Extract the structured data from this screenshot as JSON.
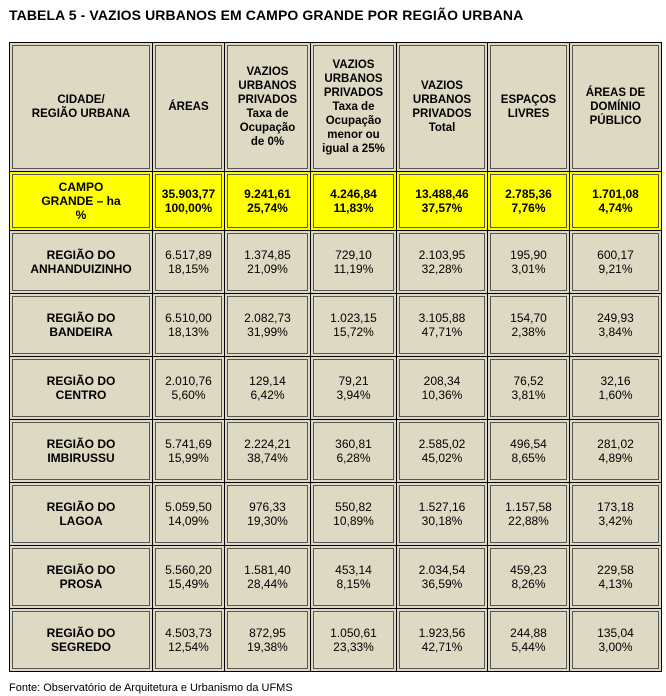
{
  "title": "TABELA 5 - VAZIOS URBANOS EM CAMPO GRANDE POR REGIÃO URBANA",
  "headers": [
    [
      "CIDADE/",
      "REGIÃO URBANA"
    ],
    [
      "ÁREAS"
    ],
    [
      "VAZIOS",
      "URBANOS",
      "PRIVADOS",
      "Taxa de",
      "Ocupação",
      "de 0%"
    ],
    [
      "VAZIOS",
      "URBANOS",
      "PRIVADOS",
      "Taxa de",
      "Ocupação",
      "menor ou",
      "igual a 25%"
    ],
    [
      "VAZIOS",
      "URBANOS",
      "PRIVADOS",
      "Total"
    ],
    [
      "ESPAÇOS",
      "LIVRES"
    ],
    [
      "ÁREAS DE",
      "DOMÍNIO",
      "PÚBLICO"
    ]
  ],
  "total_row": {
    "name": [
      "CAMPO",
      "GRANDE – ha",
      "%"
    ],
    "cells": [
      [
        "35.903,77",
        "100,00%"
      ],
      [
        "9.241,61",
        "25,74%"
      ],
      [
        "4.246,84",
        "11,83%"
      ],
      [
        "13.488,46",
        "37,57%"
      ],
      [
        "2.785,36",
        "7,76%"
      ],
      [
        "1.701,08",
        "4,74%"
      ]
    ]
  },
  "regions": [
    {
      "name": [
        "REGIÃO DO",
        "ANHANDUIZINHO"
      ],
      "cells": [
        [
          "6.517,89",
          "18,15%"
        ],
        [
          "1.374,85",
          "21,09%"
        ],
        [
          "729,10",
          "11,19%"
        ],
        [
          "2.103,95",
          "32,28%"
        ],
        [
          "195,90",
          "3,01%"
        ],
        [
          "600,17",
          "9,21%"
        ]
      ]
    },
    {
      "name": [
        "REGIÃO DO",
        "BANDEIRA"
      ],
      "cells": [
        [
          "6.510,00",
          "18,13%"
        ],
        [
          "2.082,73",
          "31,99%"
        ],
        [
          "1.023,15",
          "15,72%"
        ],
        [
          "3.105,88",
          "47,71%"
        ],
        [
          "154,70",
          "2,38%"
        ],
        [
          "249,93",
          "3,84%"
        ]
      ]
    },
    {
      "name": [
        "REGIÃO DO",
        "CENTRO"
      ],
      "cells": [
        [
          "2.010,76",
          "5,60%"
        ],
        [
          "129,14",
          "6,42%"
        ],
        [
          "79,21",
          "3,94%"
        ],
        [
          "208,34",
          "10,36%"
        ],
        [
          "76,52",
          "3,81%"
        ],
        [
          "32,16",
          "1,60%"
        ]
      ]
    },
    {
      "name": [
        "REGIÃO DO",
        "IMBIRUSSU"
      ],
      "cells": [
        [
          "5.741,69",
          "15,99%"
        ],
        [
          "2.224,21",
          "38,74%"
        ],
        [
          "360,81",
          "6,28%"
        ],
        [
          "2.585,02",
          "45,02%"
        ],
        [
          "496,54",
          "8,65%"
        ],
        [
          "281,02",
          "4,89%"
        ]
      ]
    },
    {
      "name": [
        "REGIÃO DO",
        "LAGOA"
      ],
      "cells": [
        [
          "5.059,50",
          "14,09%"
        ],
        [
          "976,33",
          "19,30%"
        ],
        [
          "550,82",
          "10,89%"
        ],
        [
          "1.527,16",
          "30,18%"
        ],
        [
          "1.157,58",
          "22,88%"
        ],
        [
          "173,18",
          "3,42%"
        ]
      ]
    },
    {
      "name": [
        "REGIÃO DO",
        "PROSA"
      ],
      "cells": [
        [
          "5.560,20",
          "15,49%"
        ],
        [
          "1.581,40",
          "28,44%"
        ],
        [
          "453,14",
          "8,15%"
        ],
        [
          "2.034,54",
          "36,59%"
        ],
        [
          "459,23",
          "8,26%"
        ],
        [
          "229,58",
          "4,13%"
        ]
      ]
    },
    {
      "name": [
        "REGIÃO DO",
        "SEGREDO"
      ],
      "cells": [
        [
          "4.503,73",
          "12,54%"
        ],
        [
          "872,95",
          "19,38%"
        ],
        [
          "1.050,61",
          "23,33%"
        ],
        [
          "1.923,56",
          "42,71%"
        ],
        [
          "244,88",
          "5,44%"
        ],
        [
          "135,04",
          "3,00%"
        ]
      ]
    }
  ],
  "source": "Fonte: Observatório de Arquitetura e Urbanismo da UFMS",
  "colors": {
    "table_bg": "#ddd9c3",
    "total_row_bg": "#ffff00"
  }
}
